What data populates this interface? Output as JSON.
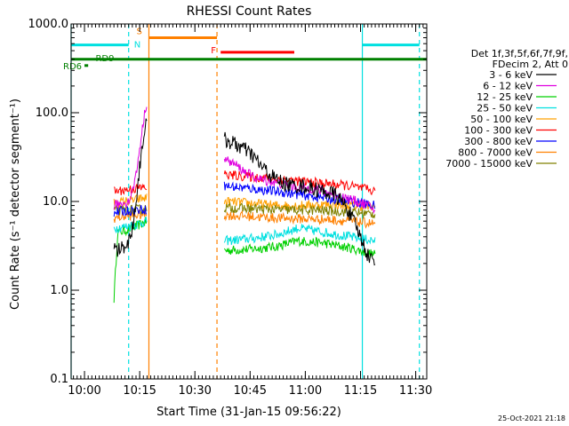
{
  "chart_data": {
    "type": "line",
    "title": "RHESSI Count Rates",
    "xlabel": "Start Time (31-Jan-15 09:56:22)",
    "ylabel": "Count Rate (s⁻¹ detector segment⁻¹)",
    "ylog": true,
    "ylim": [
      0.1,
      1000
    ],
    "xlim": [
      "09:56:22",
      "11:33:00"
    ],
    "x_ticks": [
      "10:00",
      "10:15",
      "10:30",
      "10:45",
      "11:00",
      "11:15",
      "11:30"
    ],
    "y_ticks": [
      "0.1",
      "1.0",
      "10.0",
      "100.0",
      "1000.0"
    ],
    "legend_header": [
      "Det 1f,3f,5f,6f,7f,9f,",
      "FDecim 2, Att 0"
    ],
    "legend_position": "right",
    "series": [
      {
        "name": "3 - 6 keV",
        "color": "#000000",
        "segments": [
          {
            "t": [
              "10:08",
              "10:09",
              "10:10",
              "10:12",
              "10:13",
              "10:14",
              "10:15",
              "10:16",
              "10:17"
            ],
            "v": [
              3.0,
              2.8,
              3.0,
              3.5,
              5.0,
              10,
              25,
              55,
              80
            ]
          },
          {
            "t": [
              "10:38",
              "10:40",
              "10:43",
              "10:46",
              "10:48",
              "10:51",
              "10:54",
              "10:57",
              "10:59",
              "11:02",
              "11:05",
              "11:08",
              "11:11",
              "11:14",
              "11:17",
              "11:19"
            ],
            "v": [
              50,
              46,
              40,
              32,
              25,
              19,
              16,
              15,
              15,
              14,
              13,
              12,
              9,
              5,
              2.5,
              2.0
            ]
          }
        ]
      },
      {
        "name": "6 - 12 keV",
        "color": "#e000e0",
        "segments": [
          {
            "t": [
              "10:08",
              "10:10",
              "10:12",
              "10:13",
              "10:14",
              "10:15",
              "10:16",
              "10:17"
            ],
            "v": [
              9,
              9.5,
              10,
              13,
              20,
              40,
              80,
              140
            ]
          },
          {
            "t": [
              "10:38",
              "10:41",
              "10:44",
              "10:47",
              "10:50",
              "10:53",
              "10:56",
              "10:59",
              "11:02",
              "11:05",
              "11:08",
              "11:11",
              "11:14",
              "11:17",
              "11:19"
            ],
            "v": [
              30,
              26,
              21,
              18,
              17,
              16,
              15,
              14,
              14,
              13,
              12,
              11,
              10,
              9,
              8
            ]
          }
        ]
      },
      {
        "name": "12 - 25 keV",
        "color": "#00d000",
        "segments": [
          {
            "t": [
              "10:08",
              "10:09",
              "10:11",
              "10:13",
              "10:15",
              "10:17"
            ],
            "v": [
              0.8,
              4.5,
              4.7,
              5.0,
              5.5,
              6.0
            ]
          },
          {
            "t": [
              "10:38",
              "10:45",
              "10:52",
              "10:58",
              "11:05",
              "11:12",
              "11:19"
            ],
            "v": [
              2.8,
              2.9,
              3.1,
              3.6,
              3.4,
              3.0,
              2.5
            ]
          }
        ]
      },
      {
        "name": "25 - 50 keV",
        "color": "#00e0e0",
        "segments": [
          {
            "t": [
              "10:08",
              "10:11",
              "10:14",
              "10:17"
            ],
            "v": [
              5.0,
              5.2,
              5.5,
              6.0
            ]
          },
          {
            "t": [
              "10:38",
              "10:45",
              "10:52",
              "10:58",
              "11:05",
              "11:12",
              "11:19"
            ],
            "v": [
              3.6,
              3.8,
              4.2,
              5.0,
              4.5,
              4.0,
              3.6
            ]
          }
        ]
      },
      {
        "name": "50 - 100 keV",
        "color": "#ffa000",
        "segments": [
          {
            "t": [
              "10:08",
              "10:11",
              "10:14",
              "10:17"
            ],
            "v": [
              9.5,
              10,
              10.5,
              11
            ]
          },
          {
            "t": [
              "10:38",
              "10:45",
              "10:52",
              "10:58",
              "11:05",
              "11:12",
              "11:19"
            ],
            "v": [
              10,
              9.6,
              9.0,
              9.0,
              9.2,
              9.0,
              8.6
            ]
          }
        ]
      },
      {
        "name": "100 - 300 keV",
        "color": "#ff0000",
        "segments": [
          {
            "t": [
              "10:08",
              "10:11",
              "10:14",
              "10:17"
            ],
            "v": [
              13,
              13.5,
              14,
              14.5
            ]
          },
          {
            "t": [
              "10:38",
              "10:45",
              "10:52",
              "10:58",
              "11:05",
              "11:12",
              "11:19"
            ],
            "v": [
              20,
              19,
              18,
              17,
              16,
              15,
              13
            ]
          }
        ]
      },
      {
        "name": "300 - 800 keV",
        "color": "#0000ff",
        "segments": [
          {
            "t": [
              "10:08",
              "10:11",
              "10:14",
              "10:17"
            ],
            "v": [
              7.5,
              7.8,
              8.0,
              8.2
            ]
          },
          {
            "t": [
              "10:38",
              "10:45",
              "10:52",
              "10:58",
              "11:05",
              "11:12",
              "11:19"
            ],
            "v": [
              15,
              14,
              13,
              12,
              11,
              10,
              9
            ]
          }
        ]
      },
      {
        "name": "800 - 7000 keV",
        "color": "#ff8000",
        "segments": [
          {
            "t": [
              "10:08",
              "10:11",
              "10:14",
              "10:17"
            ],
            "v": [
              6.5,
              6.8,
              7.0,
              7.2
            ]
          },
          {
            "t": [
              "10:38",
              "10:45",
              "10:52",
              "10:58",
              "11:05",
              "11:12",
              "11:19"
            ],
            "v": [
              7.0,
              6.8,
              6.5,
              6.4,
              6.3,
              6.0,
              5.6
            ]
          }
        ]
      },
      {
        "name": "7000 - 15000 keV",
        "color": "#808000",
        "segments": [
          {
            "t": [
              "10:08",
              "10:11",
              "10:14",
              "10:17"
            ],
            "v": [
              7.8,
              8.0,
              8.1,
              8.3
            ]
          },
          {
            "t": [
              "10:38",
              "10:45",
              "10:52",
              "10:58",
              "11:05",
              "11:12",
              "11:19"
            ],
            "v": [
              8.5,
              8.3,
              8.1,
              8.0,
              7.9,
              7.6,
              7.2
            ]
          }
        ]
      }
    ],
    "annotations": {
      "vertical_lines": [
        {
          "t": "09:56:22",
          "color": "#00e0e0",
          "style": "solid"
        },
        {
          "t": "10:12",
          "color": "#00e0e0",
          "style": "dashed"
        },
        {
          "t": "10:17:30",
          "color": "#ff8000",
          "style": "solid"
        },
        {
          "t": "10:36",
          "color": "#ff8000",
          "style": "dashed"
        },
        {
          "t": "11:15:30",
          "color": "#00e0e0",
          "style": "solid"
        },
        {
          "t": "11:31",
          "color": "#00e0e0",
          "style": "dashed"
        }
      ],
      "bars": [
        {
          "label": "N",
          "color": "#00e0e0",
          "t0": "09:56:22",
          "t1": "10:12",
          "y": 580
        },
        {
          "label": "",
          "color": "#00e0e0",
          "t0": "11:15:30",
          "t1": "11:31",
          "y": 580
        },
        {
          "label": "S",
          "color": "#ff8000",
          "t0": "10:17:30",
          "t1": "10:36",
          "y": 700
        },
        {
          "label": "F",
          "color": "#ff0000",
          "t0": "10:37",
          "t1": "10:57",
          "y": 480
        },
        {
          "label": "RD9",
          "color": "#008000",
          "t0": "09:56:22",
          "t1": "11:33:00",
          "y": 400
        },
        {
          "label": "RD6",
          "color": "#008000",
          "t0": "10:00",
          "t1": "10:01",
          "y": 340
        }
      ]
    },
    "footer_stamp": "25-Oct-2021 21:18"
  }
}
